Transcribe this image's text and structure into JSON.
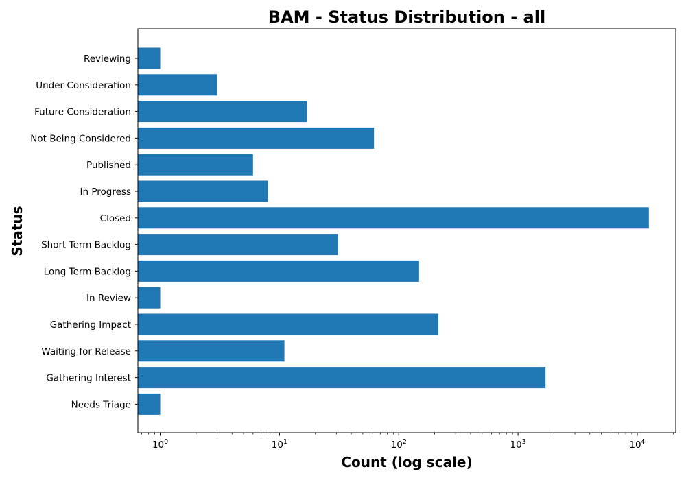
{
  "chart_data": {
    "type": "bar",
    "orientation": "horizontal",
    "title": "BAM - Status Distribution - all",
    "xlabel": "Count (log scale)",
    "ylabel": "Status",
    "x_scale": "log",
    "xlim": [
      0.65,
      21000
    ],
    "x_ticks": [
      {
        "value": 1,
        "base": "10",
        "exp": "0"
      },
      {
        "value": 10,
        "base": "10",
        "exp": "1"
      },
      {
        "value": 100,
        "base": "10",
        "exp": "2"
      },
      {
        "value": 1000,
        "base": "10",
        "exp": "3"
      },
      {
        "value": 10000,
        "base": "10",
        "exp": "4"
      }
    ],
    "grid": false,
    "bar_color": "#1f77b4",
    "categories": [
      "Reviewing",
      "Under Consideration",
      "Future Consideration",
      "Not Being Considered",
      "Published",
      "In Progress",
      "Closed",
      "Short Term Backlog",
      "Long Term Backlog",
      "In Review",
      "Gathering Impact",
      "Waiting for Release",
      "Gathering Interest",
      "Needs Triage"
    ],
    "values": [
      1,
      3,
      17,
      62,
      6,
      8,
      12500,
      31,
      148,
      1,
      215,
      11,
      1700,
      1
    ]
  }
}
